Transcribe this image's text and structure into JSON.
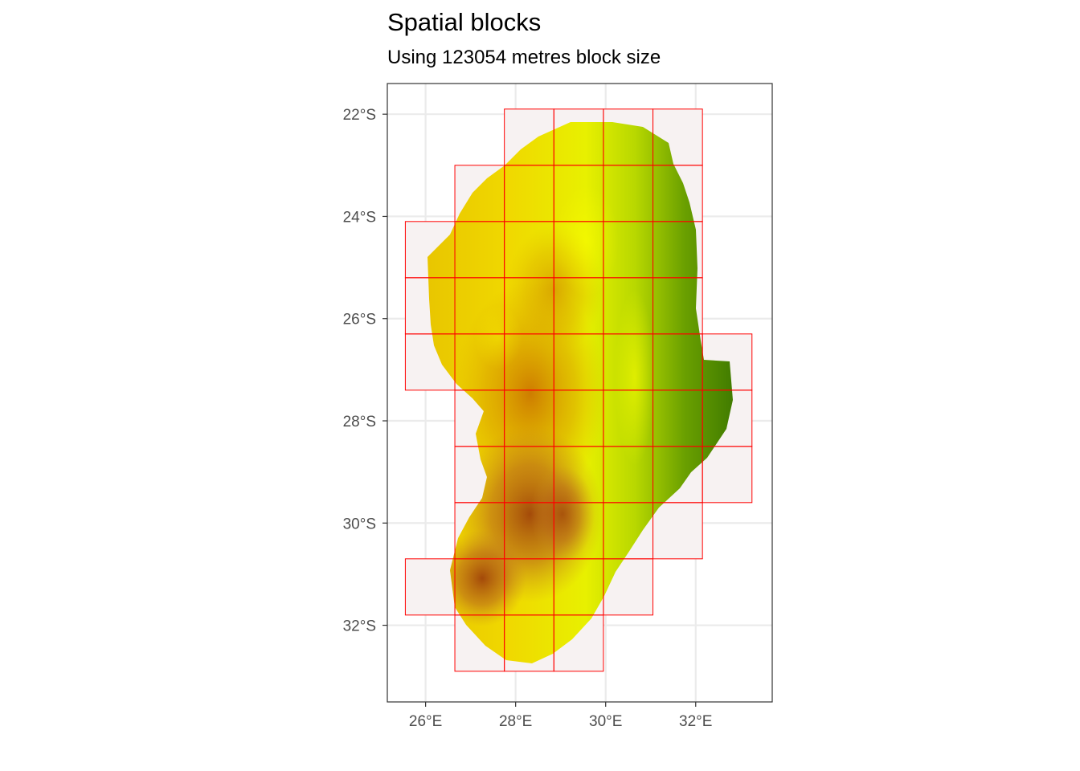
{
  "title": "Spatial blocks",
  "subtitle": "Using 123054 metres block size",
  "axes": {
    "x_ticks": [
      "26°E",
      "28°E",
      "30°E",
      "32°E"
    ],
    "y_ticks": [
      "22°S",
      "24°S",
      "26°S",
      "28°S",
      "30°S",
      "32°S"
    ]
  },
  "colors": {
    "block_outline": "#ff0000",
    "block_fill": "#f7f2f2",
    "raster_low": "#a0522d",
    "raster_mid": "#ffff00",
    "raster_high": "#2e6b00",
    "gridline": "#ebebeb",
    "panel_border": "#333333"
  },
  "map": {
    "x_range_deg_e": [
      25.15,
      33.7
    ],
    "y_range_deg_s": [
      21.4,
      33.5
    ],
    "block_size_m": 123054,
    "blocks_note_units": "degrees (lon E, lat S)",
    "blocks": [
      [
        27.75,
        21.9,
        28.85,
        23.0
      ],
      [
        28.85,
        21.9,
        29.95,
        23.0
      ],
      [
        29.95,
        21.9,
        31.05,
        23.0
      ],
      [
        31.05,
        21.9,
        32.15,
        23.0
      ],
      [
        26.65,
        23.0,
        27.75,
        24.1
      ],
      [
        27.75,
        23.0,
        28.85,
        24.1
      ],
      [
        28.85,
        23.0,
        29.95,
        24.1
      ],
      [
        29.95,
        23.0,
        31.05,
        24.1
      ],
      [
        31.05,
        23.0,
        32.15,
        24.1
      ],
      [
        25.55,
        24.1,
        26.65,
        25.2
      ],
      [
        26.65,
        24.1,
        27.75,
        25.2
      ],
      [
        27.75,
        24.1,
        28.85,
        25.2
      ],
      [
        28.85,
        24.1,
        29.95,
        25.2
      ],
      [
        29.95,
        24.1,
        31.05,
        25.2
      ],
      [
        31.05,
        24.1,
        32.15,
        25.2
      ],
      [
        25.55,
        25.2,
        26.65,
        26.3
      ],
      [
        26.65,
        25.2,
        27.75,
        26.3
      ],
      [
        27.75,
        25.2,
        28.85,
        26.3
      ],
      [
        28.85,
        25.2,
        29.95,
        26.3
      ],
      [
        29.95,
        25.2,
        31.05,
        26.3
      ],
      [
        31.05,
        25.2,
        32.15,
        26.3
      ],
      [
        25.55,
        26.3,
        26.65,
        27.4
      ],
      [
        26.65,
        26.3,
        27.75,
        27.4
      ],
      [
        27.75,
        26.3,
        28.85,
        27.4
      ],
      [
        28.85,
        26.3,
        29.95,
        27.4
      ],
      [
        29.95,
        26.3,
        31.05,
        27.4
      ],
      [
        31.05,
        26.3,
        32.15,
        27.4
      ],
      [
        32.15,
        26.3,
        33.25,
        27.4
      ],
      [
        26.65,
        27.4,
        27.75,
        28.5
      ],
      [
        27.75,
        27.4,
        28.85,
        28.5
      ],
      [
        28.85,
        27.4,
        29.95,
        28.5
      ],
      [
        29.95,
        27.4,
        31.05,
        28.5
      ],
      [
        31.05,
        27.4,
        32.15,
        28.5
      ],
      [
        32.15,
        27.4,
        33.25,
        28.5
      ],
      [
        26.65,
        28.5,
        27.75,
        29.6
      ],
      [
        27.75,
        28.5,
        28.85,
        29.6
      ],
      [
        28.85,
        28.5,
        29.95,
        29.6
      ],
      [
        29.95,
        28.5,
        31.05,
        29.6
      ],
      [
        31.05,
        28.5,
        32.15,
        29.6
      ],
      [
        32.15,
        28.5,
        33.25,
        29.6
      ],
      [
        26.65,
        29.6,
        27.75,
        30.7
      ],
      [
        27.75,
        29.6,
        28.85,
        30.7
      ],
      [
        28.85,
        29.6,
        29.95,
        30.7
      ],
      [
        29.95,
        29.6,
        31.05,
        30.7
      ],
      [
        31.05,
        29.6,
        32.15,
        30.7
      ],
      [
        25.55,
        30.7,
        26.65,
        31.8
      ],
      [
        26.65,
        30.7,
        27.75,
        31.8
      ],
      [
        27.75,
        30.7,
        28.85,
        31.8
      ],
      [
        28.85,
        30.7,
        29.95,
        31.8
      ],
      [
        29.95,
        30.7,
        31.05,
        31.8
      ],
      [
        26.65,
        31.8,
        27.75,
        32.9
      ],
      [
        27.75,
        31.8,
        28.85,
        32.9
      ],
      [
        28.85,
        31.8,
        29.95,
        32.9
      ]
    ]
  }
}
